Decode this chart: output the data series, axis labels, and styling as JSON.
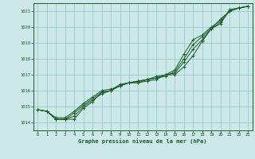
{
  "title": "Graphe pression niveau de la mer (hPa)",
  "bg_color": "#cce8e8",
  "grid_color": "#99cccc",
  "line_color": "#1a5c2a",
  "marker_color": "#1a5c2a",
  "xlim": [
    -0.5,
    23.5
  ],
  "ylim": [
    1013.5,
    1021.5
  ],
  "yticks": [
    1014,
    1015,
    1016,
    1017,
    1018,
    1019,
    1020,
    1021
  ],
  "xticks": [
    0,
    1,
    2,
    3,
    4,
    5,
    6,
    7,
    8,
    9,
    10,
    11,
    12,
    13,
    14,
    15,
    16,
    17,
    18,
    19,
    20,
    21,
    22,
    23
  ],
  "series": [
    [
      1014.8,
      1014.7,
      1014.2,
      1014.2,
      1014.2,
      1014.9,
      1015.3,
      1015.9,
      1016.0,
      1016.4,
      1016.5,
      1016.5,
      1016.6,
      1016.7,
      1017.0,
      1017.0,
      1017.5,
      1018.2,
      1019.1,
      1019.9,
      1020.5,
      1021.0,
      1021.2,
      1021.3
    ],
    [
      1014.8,
      1014.7,
      1014.2,
      1014.2,
      1014.4,
      1015.0,
      1015.4,
      1015.8,
      1016.0,
      1016.3,
      1016.5,
      1016.6,
      1016.7,
      1016.8,
      1017.0,
      1017.1,
      1017.8,
      1018.6,
      1019.2,
      1019.9,
      1020.2,
      1021.1,
      1021.2,
      1021.3
    ],
    [
      1014.8,
      1014.7,
      1014.2,
      1014.2,
      1014.6,
      1015.1,
      1015.5,
      1015.9,
      1016.0,
      1016.3,
      1016.5,
      1016.5,
      1016.7,
      1016.8,
      1016.9,
      1017.2,
      1018.0,
      1018.9,
      1019.4,
      1019.9,
      1020.3,
      1021.0,
      1021.2,
      1021.3
    ],
    [
      1014.8,
      1014.7,
      1014.3,
      1014.3,
      1014.7,
      1015.2,
      1015.6,
      1016.0,
      1016.1,
      1016.3,
      1016.5,
      1016.6,
      1016.7,
      1016.9,
      1017.0,
      1017.3,
      1018.3,
      1019.2,
      1019.5,
      1020.0,
      1020.4,
      1021.0,
      1021.2,
      1021.3
    ]
  ]
}
